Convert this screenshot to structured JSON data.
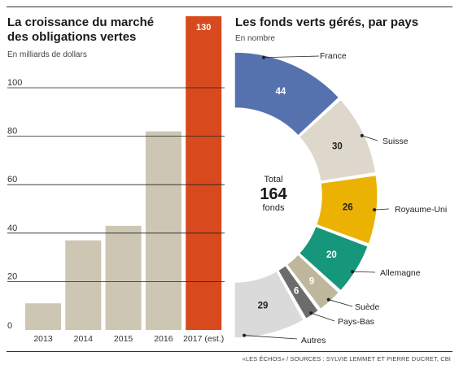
{
  "chart_data": [
    {
      "type": "bar",
      "title": "La croissance du marché des obligations vertes",
      "title_lines": [
        "La croissance du marché",
        "des obligations vertes"
      ],
      "subtitle": "En milliards de dollars",
      "categories": [
        "2013",
        "2014",
        "2015",
        "2016",
        "2017 (est.)"
      ],
      "values": [
        11,
        37,
        43,
        82,
        130
      ],
      "value_labels": [
        "",
        "",
        "",
        "",
        "130"
      ],
      "yticks": [
        0,
        20,
        40,
        60,
        80,
        100
      ],
      "ylim": [
        0,
        132
      ],
      "grid": true,
      "colors": {
        "default": "#cdc6b3",
        "highlight": "#d84a1e",
        "grid": "#222222"
      }
    },
    {
      "type": "pie",
      "title": "Les fonds verts gérés, par pays",
      "subtitle": "En nombre",
      "center_label": {
        "top": "Total",
        "value": "164",
        "bottom": "fonds"
      },
      "total": 164,
      "slices": [
        {
          "label": "France",
          "value": 44,
          "color": "#5572ae",
          "text_color": "#ffffff"
        },
        {
          "label": "Suisse",
          "value": 30,
          "color": "#ddd8cb",
          "text_color": "#222222"
        },
        {
          "label": "Royaume-Uni",
          "value": 26,
          "color": "#ebb203",
          "text_color": "#222222"
        },
        {
          "label": "Allemagne",
          "value": 20,
          "color": "#16967a",
          "text_color": "#ffffff"
        },
        {
          "label": "Suède",
          "value": 9,
          "color": "#bfb79c",
          "text_color": "#ffffff"
        },
        {
          "label": "Pays-Bas",
          "value": 6,
          "color": "#6c6c6c",
          "text_color": "#ffffff"
        },
        {
          "label": "Autres",
          "value": 29,
          "color": "#dadada",
          "text_color": "#222222"
        }
      ]
    }
  ],
  "footer": {
    "source": "«LES ÉCHOS» / SOURCES : SYLVIE LEMMET ET PIERRE DUCRET, CBI"
  }
}
